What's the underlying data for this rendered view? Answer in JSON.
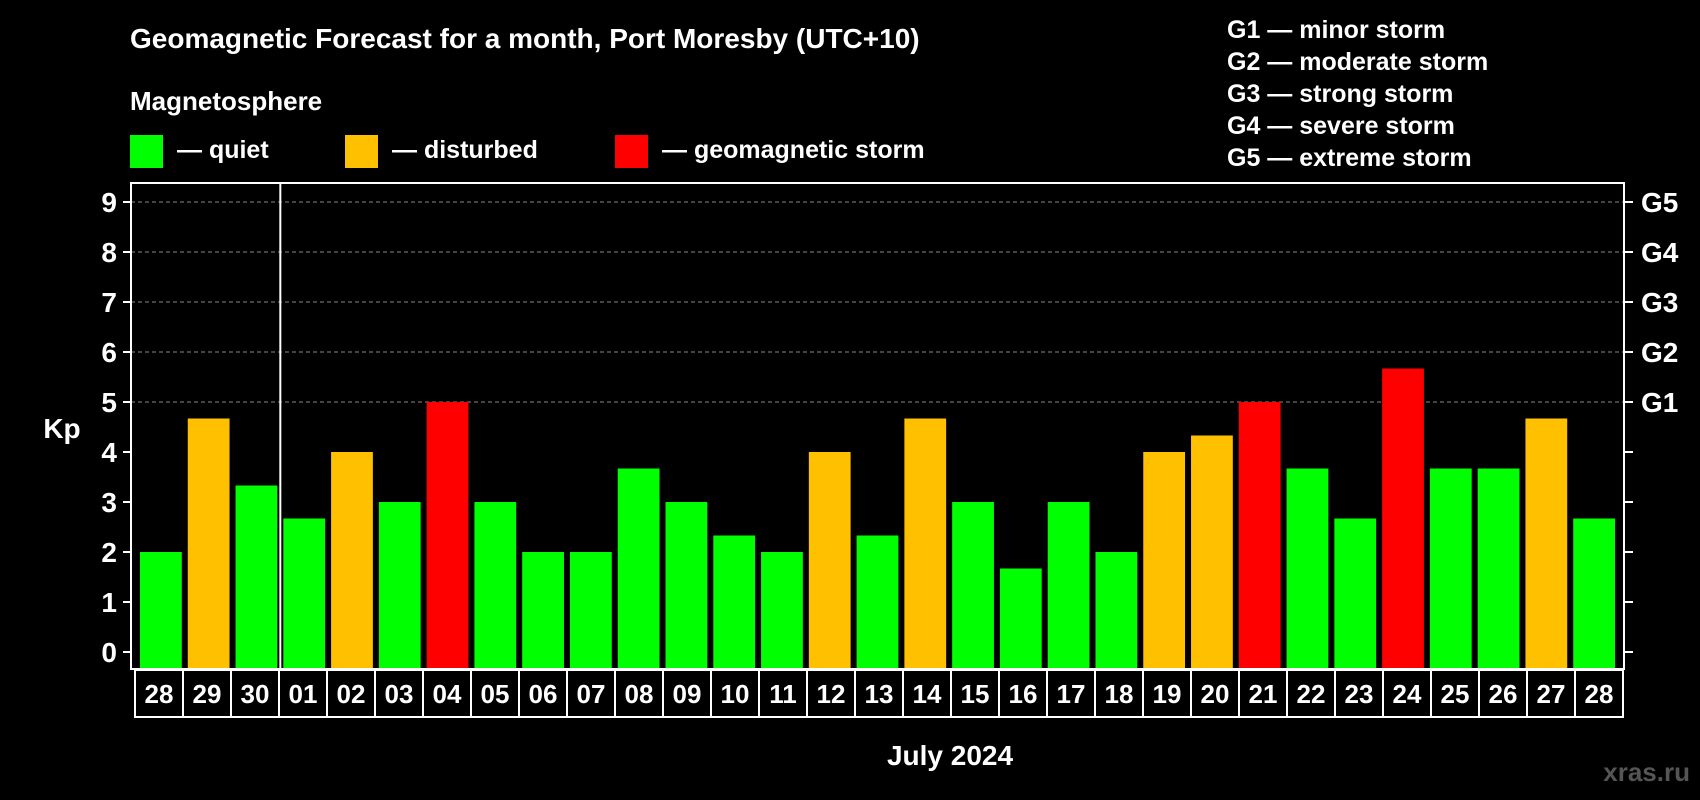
{
  "chart_data": {
    "type": "bar",
    "title": "Geomagnetic Forecast for a month, Port Moresby (UTC+10)",
    "legend_title": "Magnetosphere",
    "legend": [
      {
        "label": "— quiet",
        "color": "#00ff00",
        "level": "quiet"
      },
      {
        "label": "— disturbed",
        "color": "#ffc000",
        "level": "disturbed"
      },
      {
        "label": "— geomagnetic storm",
        "color": "#ff0000",
        "level": "storm"
      }
    ],
    "storm_scale": [
      "G1 — minor storm",
      "G2 — moderate storm",
      "G3 — strong storm",
      "G4 — severe storm",
      "G5 — extreme storm"
    ],
    "ylabel": "Kp",
    "xlabel": "July 2024",
    "ylim": [
      0,
      9
    ],
    "yticks": [
      "0",
      "1",
      "2",
      "3",
      "4",
      "5",
      "6",
      "7",
      "8",
      "9"
    ],
    "right_ticks": [
      {
        "value": 5,
        "label": "G1"
      },
      {
        "value": 6,
        "label": "G2"
      },
      {
        "value": 7,
        "label": "G3"
      },
      {
        "value": 8,
        "label": "G4"
      },
      {
        "value": 9,
        "label": "G5"
      }
    ],
    "month_divider_after_index": 2,
    "categories": [
      "28",
      "29",
      "30",
      "01",
      "02",
      "03",
      "04",
      "05",
      "06",
      "07",
      "08",
      "09",
      "10",
      "11",
      "12",
      "13",
      "14",
      "15",
      "16",
      "17",
      "18",
      "19",
      "20",
      "21",
      "22",
      "23",
      "24",
      "25",
      "26",
      "27",
      "28"
    ],
    "values": [
      2,
      4.67,
      3.33,
      2.67,
      4,
      3,
      5,
      3,
      2,
      2,
      3.67,
      3,
      2.33,
      2,
      4,
      2.33,
      4.67,
      3,
      1.67,
      3,
      2,
      4,
      4.33,
      5,
      3.67,
      2.67,
      5.67,
      3.67,
      3.67,
      4.67,
      2.67
    ],
    "levels": [
      "quiet",
      "disturbed",
      "quiet",
      "quiet",
      "disturbed",
      "quiet",
      "storm",
      "quiet",
      "quiet",
      "quiet",
      "quiet",
      "quiet",
      "quiet",
      "quiet",
      "disturbed",
      "quiet",
      "disturbed",
      "quiet",
      "quiet",
      "quiet",
      "quiet",
      "disturbed",
      "disturbed",
      "storm",
      "quiet",
      "quiet",
      "storm",
      "quiet",
      "quiet",
      "disturbed",
      "quiet"
    ],
    "colors": {
      "quiet": "#00ff00",
      "disturbed": "#ffc000",
      "storm": "#ff0000",
      "background": "#000000",
      "axis": "#ffffff",
      "grid": "#888888"
    },
    "grid": true
  },
  "watermark": "xras.ru"
}
